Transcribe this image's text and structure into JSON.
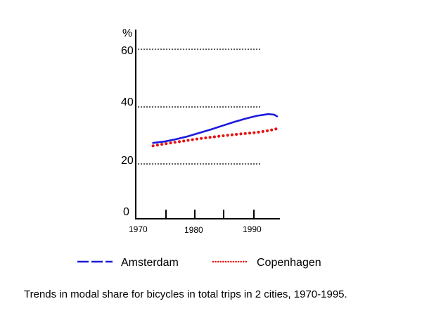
{
  "chart_data": {
    "type": "line",
    "title": "",
    "caption": "Trends in modal share for bicycles in total trips in 2 cities, 1970-1995.",
    "ylabel": "%",
    "xlabel": "",
    "xlim": [
      1970,
      1995
    ],
    "ylim": [
      0,
      60
    ],
    "y_ticks": [
      0,
      20,
      40,
      60
    ],
    "x_tick_labels": [
      1970,
      1980,
      1990
    ],
    "x_tick_marks": [
      1975,
      1980,
      1985,
      1990
    ],
    "grid": "horizontal dotted at 20, 40, 60",
    "legend_position": "bottom",
    "series": [
      {
        "name": "Amsterdam",
        "style": "solid",
        "color": "#1a1adc",
        "x": [
          1973,
          1975,
          1977,
          1979,
          1981,
          1983,
          1985,
          1987,
          1989,
          1991,
          1993,
          1994,
          1994.5
        ],
        "values": [
          26.5,
          27.0,
          27.8,
          28.8,
          30.0,
          31.2,
          32.5,
          33.8,
          35.0,
          36.0,
          36.6,
          36.4,
          35.8
        ]
      },
      {
        "name": "Copenhagen",
        "style": "dotted",
        "color": "#e81010",
        "x": [
          1973,
          1975,
          1977,
          1979,
          1981,
          1983,
          1985,
          1987,
          1989,
          1991,
          1993,
          1994.5
        ],
        "values": [
          25.5,
          26.2,
          26.8,
          27.4,
          28.0,
          28.5,
          29.0,
          29.4,
          29.8,
          30.2,
          30.8,
          31.5
        ]
      }
    ]
  }
}
